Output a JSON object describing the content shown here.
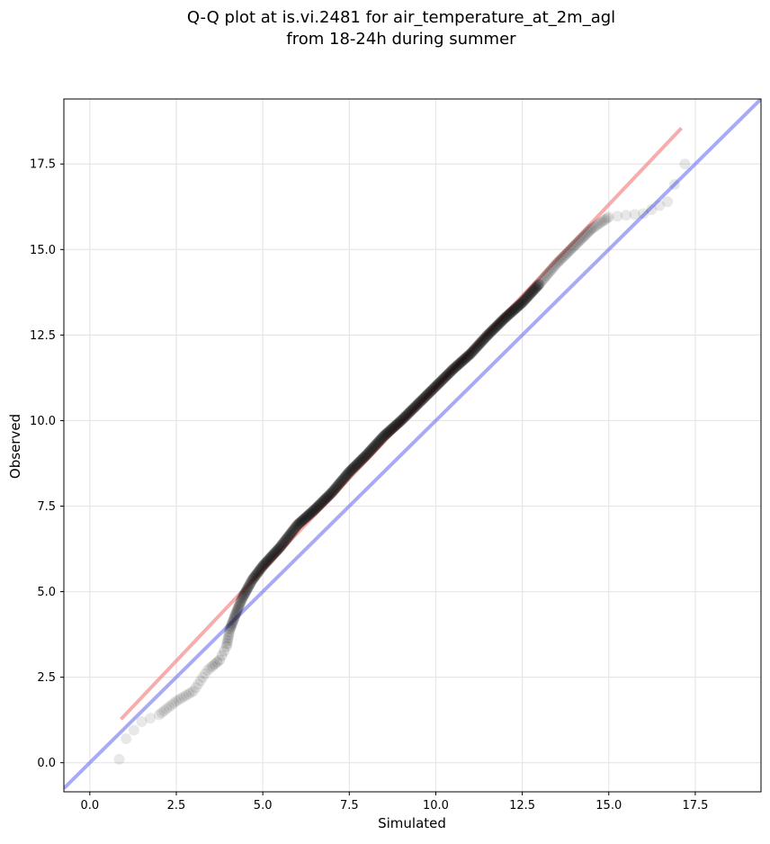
{
  "chart_data": {
    "type": "scatter",
    "title_line1": "Q-Q plot at is.vi.2481 for air_temperature_at_2m_agl",
    "title_line2": "from 18-24h during summer",
    "xlabel": "Simulated",
    "ylabel": "Observed",
    "xlim": [
      -0.75,
      19.4
    ],
    "ylim": [
      -0.85,
      19.4
    ],
    "xticks": [
      0.0,
      2.5,
      5.0,
      7.5,
      10.0,
      12.5,
      15.0,
      17.5
    ],
    "yticks": [
      0.0,
      2.5,
      5.0,
      7.5,
      10.0,
      12.5,
      15.0,
      17.5
    ],
    "xtick_labels": [
      "0.0",
      "2.5",
      "5.0",
      "7.5",
      "10.0",
      "12.5",
      "15.0",
      "17.5"
    ],
    "ytick_labels": [
      "0.0",
      "2.5",
      "5.0",
      "7.5",
      "10.0",
      "12.5",
      "15.0",
      "17.5"
    ],
    "grid": true,
    "point_color": "#000000",
    "identity_line": {
      "color": "#6f6ff0",
      "x": [
        -0.75,
        19.4
      ],
      "y": [
        -0.75,
        19.4
      ]
    },
    "fit_line": {
      "color": "#f48a8a",
      "x": [
        0.9,
        17.1
      ],
      "y": [
        1.27,
        18.55
      ]
    },
    "quantile_curve": {
      "x": [
        0.85,
        1.05,
        1.5,
        2.0,
        2.5,
        3.0,
        3.4,
        3.75,
        3.95,
        4.05,
        4.2,
        4.4,
        4.7,
        5.0,
        5.5,
        6.0,
        6.5,
        7.0,
        7.5,
        8.0,
        8.5,
        9.0,
        9.5,
        10.0,
        10.5,
        11.0,
        11.5,
        12.0,
        12.5,
        13.0,
        13.5,
        14.0,
        14.5,
        15.0,
        15.5,
        16.0,
        16.7,
        16.9,
        17.2
      ],
      "y": [
        0.1,
        0.7,
        1.2,
        1.4,
        1.8,
        2.1,
        2.7,
        3.0,
        3.4,
        3.9,
        4.3,
        4.8,
        5.35,
        5.75,
        6.3,
        6.95,
        7.4,
        7.9,
        8.5,
        9.0,
        9.55,
        10.0,
        10.5,
        11.0,
        11.5,
        11.95,
        12.5,
        13.0,
        13.45,
        14.0,
        14.6,
        15.1,
        15.6,
        15.95,
        16.0,
        16.05,
        16.4,
        16.9,
        17.5
      ]
    }
  }
}
